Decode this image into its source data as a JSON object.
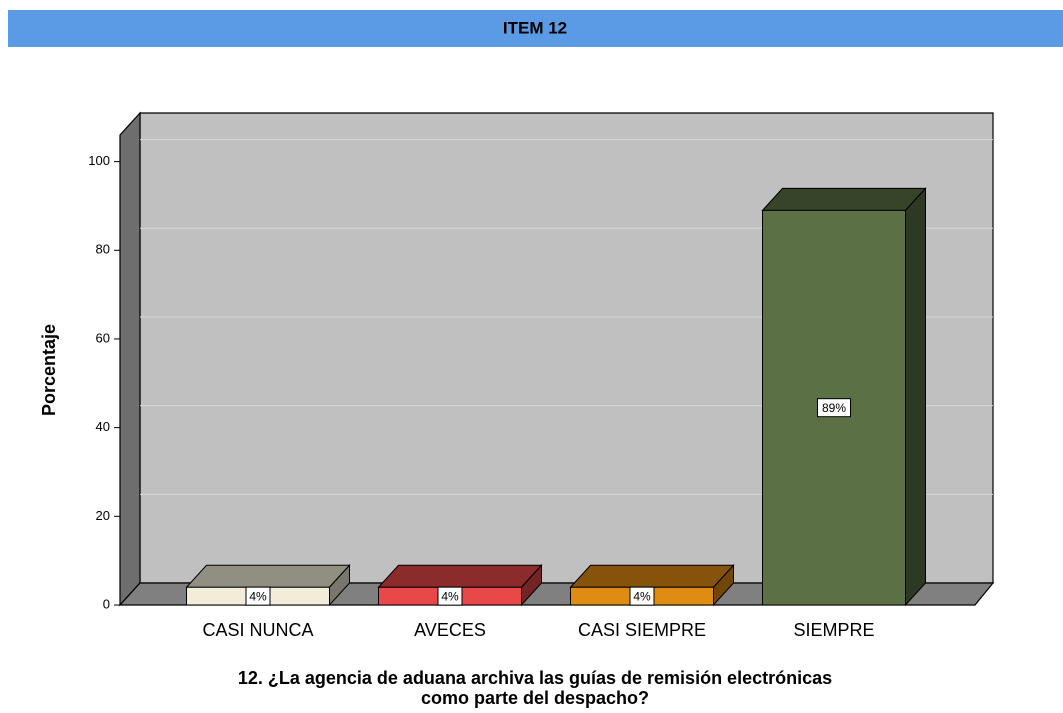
{
  "chart_data": {
    "type": "bar3d",
    "title": "ITEM 12",
    "y_label": "Porcentaje",
    "x_label": [
      "12. ¿La agencia de aduana archiva las guías de remisión electrónicas",
      "como parte del despacho?"
    ],
    "categories": [
      "CASI NUNCA",
      "AVECES",
      "CASI SIEMPRE",
      "SIEMPRE"
    ],
    "values": [
      4,
      4,
      4,
      89
    ],
    "value_labels": [
      "4%",
      "4%",
      "4%",
      "89%"
    ],
    "colors": [
      "#f1edd9",
      "#e84848",
      "#e08b12",
      "#5b7145"
    ],
    "ylim": [
      0,
      106
    ],
    "yticks": [
      0,
      20,
      40,
      60,
      80,
      100
    ],
    "grid": true
  }
}
